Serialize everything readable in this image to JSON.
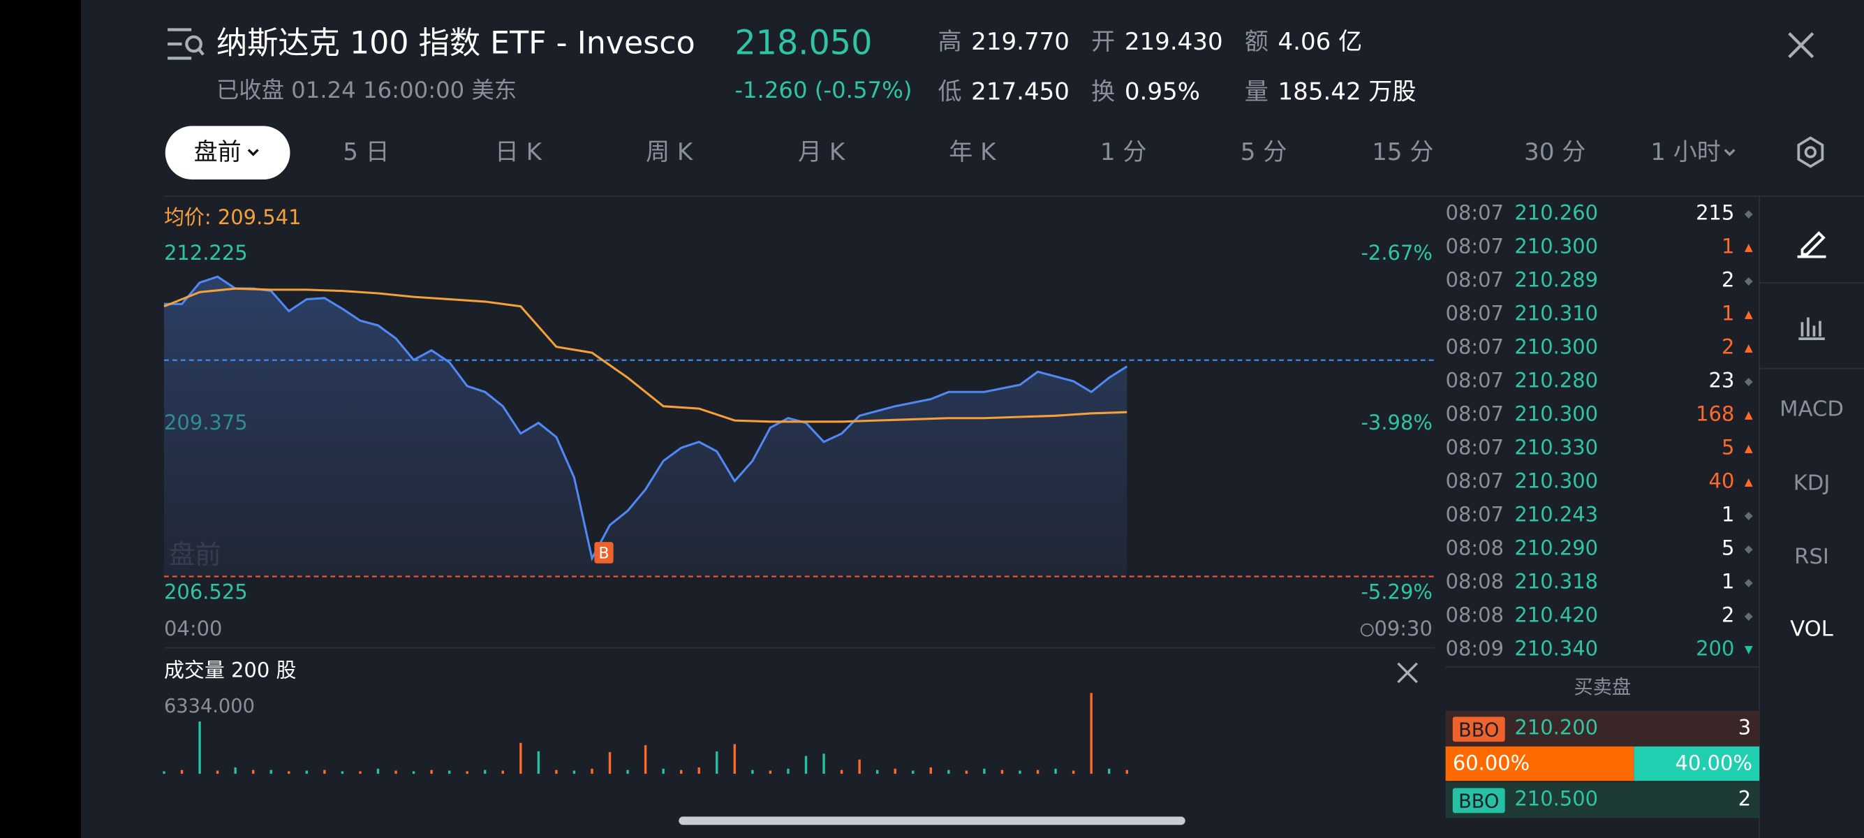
{
  "header": {
    "title": "纳斯达克 100 指数 ETF - Invesco",
    "price": "218.050",
    "status": "已收盘  01.24 16:00:00 美东",
    "change": "-1.260 (-0.57%)",
    "stats": [
      [
        "高",
        "219.770"
      ],
      [
        "开",
        "219.430"
      ],
      [
        "额",
        "4.06 亿"
      ],
      [
        "低",
        "217.450"
      ],
      [
        "换",
        "0.95%"
      ],
      [
        "量",
        "185.42 万股"
      ]
    ]
  },
  "tabs": [
    "盘前",
    "5 日",
    "日 K",
    "周 K",
    "月 K",
    "年 K",
    "1 分",
    "5 分",
    "15 分",
    "30 分",
    "1 小时"
  ],
  "selected_tab": 0,
  "chart": {
    "type": "line",
    "avg_label": "均价: 209.541",
    "watermark": "盘前",
    "ylim": [
      206.525,
      212.225
    ],
    "yticks": [
      212.225,
      209.375,
      206.525
    ],
    "ytick_pct_labels": [
      "-2.67%",
      "-3.98%",
      "-5.29%"
    ],
    "x_labels": [
      "04:00",
      "09:30"
    ],
    "series": [
      {
        "color": "#5088f5",
        "values": [
          211.39,
          211.39,
          211.75,
          211.85,
          211.65,
          211.65,
          211.61,
          211.27,
          211.47,
          211.49,
          211.31,
          211.11,
          211.03,
          210.81,
          210.45,
          210.61,
          210.41,
          210.01,
          209.91,
          209.67,
          209.21,
          209.39,
          209.15,
          208.47,
          207.11,
          207.67,
          207.91,
          208.27,
          208.75,
          208.97,
          209.07,
          208.91,
          208.41,
          208.75,
          209.31,
          209.47,
          209.39,
          209.07,
          209.21,
          209.51,
          209.59,
          209.67,
          209.73,
          209.79,
          209.91,
          209.91,
          209.91,
          209.97,
          210.03,
          210.25,
          210.17,
          210.09,
          209.91,
          210.15,
          210.34
        ]
      },
      {
        "color": "#f5a03a",
        "values": [
          211.35,
          211.59,
          211.65,
          211.63,
          211.63,
          211.61,
          211.57,
          211.51,
          211.47,
          211.43,
          211.35,
          210.67,
          210.57,
          210.15,
          209.67,
          209.63,
          209.43,
          209.41,
          209.41,
          209.41,
          209.43,
          209.45,
          209.47,
          209.47,
          209.49,
          209.51,
          209.55,
          209.57
        ]
      }
    ],
    "ref_lines": [
      {
        "value": 210.445,
        "color": "#3d8bf0"
      },
      {
        "value": 206.805,
        "color": "#f0553a"
      }
    ],
    "marker": {
      "label": "B",
      "value": 206.805
    }
  },
  "volume": {
    "title": "成交量 200 股",
    "max_label": "6334.000",
    "ylim": [
      0,
      6334
    ],
    "series": [
      {
        "color": "#ff6a2a",
        "values": [
          null,
          300,
          null,
          250,
          null,
          300,
          null,
          200,
          null,
          300,
          null,
          200,
          null,
          250,
          null,
          300,
          null,
          200,
          null,
          250,
          2420,
          null,
          300,
          null,
          400,
          1700,
          null,
          2240,
          null,
          300,
          500,
          null,
          2330,
          null,
          250,
          null,
          null,
          null,
          300,
          1120,
          null,
          400,
          null,
          500,
          null,
          250,
          null,
          300,
          null,
          300,
          null,
          250,
          6334,
          null,
          300
        ]
      },
      {
        "color": "#26c0a3",
        "values": [
          200,
          null,
          4100,
          null,
          500,
          null,
          300,
          null,
          250,
          null,
          200,
          null,
          400,
          null,
          200,
          null,
          250,
          null,
          300,
          null,
          null,
          1770,
          null,
          250,
          null,
          null,
          300,
          null,
          400,
          null,
          null,
          1750,
          null,
          300,
          null,
          400,
          1400,
          1580,
          null,
          null,
          300,
          null,
          250,
          null,
          300,
          null,
          400,
          null,
          250,
          null,
          400,
          null,
          null,
          400,
          null
        ]
      }
    ]
  },
  "trades": [
    [
      "08:07",
      "210.260",
      215,
      "#ffffff",
      "◆"
    ],
    [
      "08:07",
      "210.300",
      1,
      "#ff6a2a",
      "▲"
    ],
    [
      "08:07",
      "210.289",
      2,
      "#ffffff",
      "◆"
    ],
    [
      "08:07",
      "210.310",
      1,
      "#ff6a2a",
      "▲"
    ],
    [
      "08:07",
      "210.300",
      2,
      "#ff6a2a",
      "▲"
    ],
    [
      "08:07",
      "210.280",
      23,
      "#ffffff",
      "◆"
    ],
    [
      "08:07",
      "210.300",
      168,
      "#ff6a2a",
      "▲"
    ],
    [
      "08:07",
      "210.330",
      5,
      "#ff6a2a",
      "▲"
    ],
    [
      "08:07",
      "210.300",
      40,
      "#ff6a2a",
      "▲"
    ],
    [
      "08:07",
      "210.243",
      1,
      "#ffffff",
      "◆"
    ],
    [
      "08:08",
      "210.290",
      5,
      "#ffffff",
      "◆"
    ],
    [
      "08:08",
      "210.318",
      1,
      "#ffffff",
      "◆"
    ],
    [
      "08:08",
      "210.420",
      2,
      "#ffffff",
      "◆"
    ],
    [
      "08:09",
      "210.340",
      200,
      "#26c0a3",
      "▼"
    ]
  ],
  "orderbook": {
    "title": "买卖盘",
    "bid": {
      "tag": "BBO",
      "price": "210.200",
      "size": 3
    },
    "ask": {
      "tag": "BBO",
      "price": "210.500",
      "size": 2
    },
    "ratio": [
      {
        "value": 60,
        "label": "60.00%"
      },
      {
        "value": 40,
        "label": "40.00%"
      }
    ]
  },
  "side_menu": [
    "MACD",
    "KDJ",
    "RSI",
    "VOL"
  ],
  "side_selected": 3
}
